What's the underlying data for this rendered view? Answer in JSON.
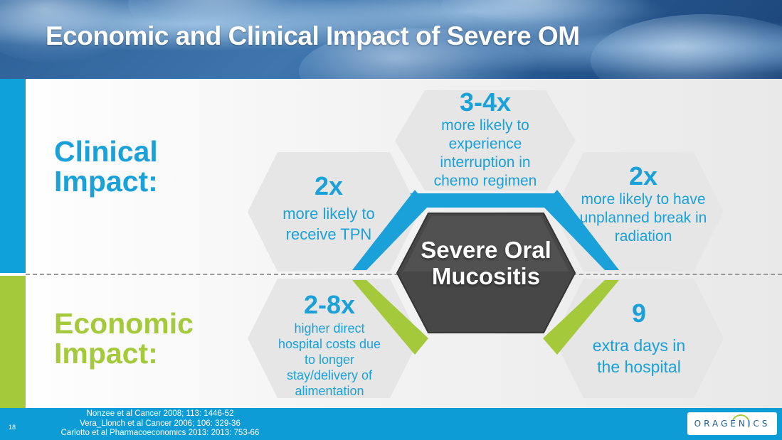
{
  "slide": {
    "title": "Economic and Clinical Impact of Severe OM",
    "page_number": "18"
  },
  "sections": {
    "clinical": "Clinical Impact:",
    "economic": "Economic Impact:"
  },
  "center": "Severe Oral Mucositis",
  "hexagons": {
    "top": {
      "stat": "3-4x",
      "text": "more likely to experience interruption in chemo regimen"
    },
    "left": {
      "stat": "2x",
      "text": "more likely to receive TPN"
    },
    "right": {
      "stat": "2x",
      "text": "more likely to have unplanned break in radiation"
    },
    "bottom_left": {
      "stat": "2-8x",
      "text": "higher direct hospital costs due to longer stay/delivery of alimentation"
    },
    "bottom_right": {
      "stat": "9",
      "text": "extra days in the hospital"
    }
  },
  "references": [
    "Nonzee et al Cancer 2008; 113: 1446-52",
    "Vera_Llonch et al Cancer 2006; 106: 329-36",
    "Carlotto et al Pharmacoeconomics 2013: 2013: 753-66"
  ],
  "logo": "ORAGENICS",
  "colors": {
    "blue": "#1aa1da",
    "green": "#a4c93a",
    "center_hex": "#4a4a4a",
    "outer_hex": "#e6e6e6"
  }
}
